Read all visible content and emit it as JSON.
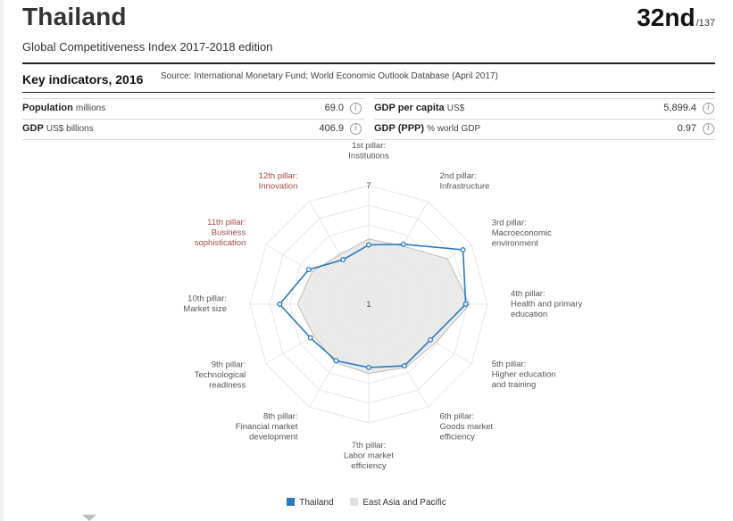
{
  "header": {
    "country": "Thailand",
    "rank": "32nd",
    "rank_total": "/137",
    "subtitle": "Global Competitiveness Index 2017-2018 edition"
  },
  "key_indicators": {
    "title": "Key indicators, 2016",
    "source": "Source: International Monetary Fund; World Economic Outlook Database (April 2017)",
    "items": [
      {
        "name": "Population",
        "unit": "millions",
        "value": "69.0"
      },
      {
        "name": "GDP per capita",
        "unit": "US$",
        "value": "5,899.4"
      },
      {
        "name": "GDP",
        "unit": "US$ billions",
        "value": "406.9"
      },
      {
        "name": "GDP (PPP)",
        "unit": "% world GDP",
        "value": "0.97"
      }
    ]
  },
  "colors": {
    "thailand": "#2b7bc0",
    "region_fill": "#e6e6e6",
    "region_stroke": "#bdbdbd",
    "innovation_labels": "#a04a45",
    "axis_labels": "#555555",
    "grid": "#e6e6e6"
  },
  "chart_data": {
    "type": "radar",
    "scale_min": 1,
    "scale_max": 7,
    "tick_labels": [
      "1",
      "7"
    ],
    "categories": [
      [
        "1st pillar:",
        "Institutions"
      ],
      [
        "2nd pillar:",
        "Infrastructure"
      ],
      [
        "3rd pillar:",
        "Macroeconomic",
        "environment"
      ],
      [
        "4th pillar:",
        "Health and primary",
        "education"
      ],
      [
        "5th pillar:",
        "Higher education",
        "and training"
      ],
      [
        "6th pillar:",
        "Goods market",
        "efficiency"
      ],
      [
        "7th pillar:",
        "Labor market",
        "efficiency"
      ],
      [
        "8th pillar:",
        "Financial market",
        "development"
      ],
      [
        "9th pillar:",
        "Technological",
        "readiness"
      ],
      [
        "10th pillar:",
        "Market size"
      ],
      [
        "11th pillar:",
        "Business",
        "sophistication"
      ],
      [
        "12th pillar:",
        "Innovation"
      ]
    ],
    "highlighted_categories": [
      10,
      11
    ],
    "series": [
      {
        "name": "Thailand",
        "values": [
          4.0,
          4.5,
          6.5,
          5.9,
          4.6,
          4.6,
          4.2,
          4.3,
          4.4,
          5.5,
          4.5,
          3.6
        ]
      },
      {
        "name": "East Asia and Pacific",
        "values": [
          4.3,
          4.4,
          5.6,
          6.1,
          4.9,
          4.7,
          4.5,
          4.4,
          4.2,
          4.6,
          4.3,
          3.9
        ]
      }
    ],
    "legend_position": "bottom"
  }
}
